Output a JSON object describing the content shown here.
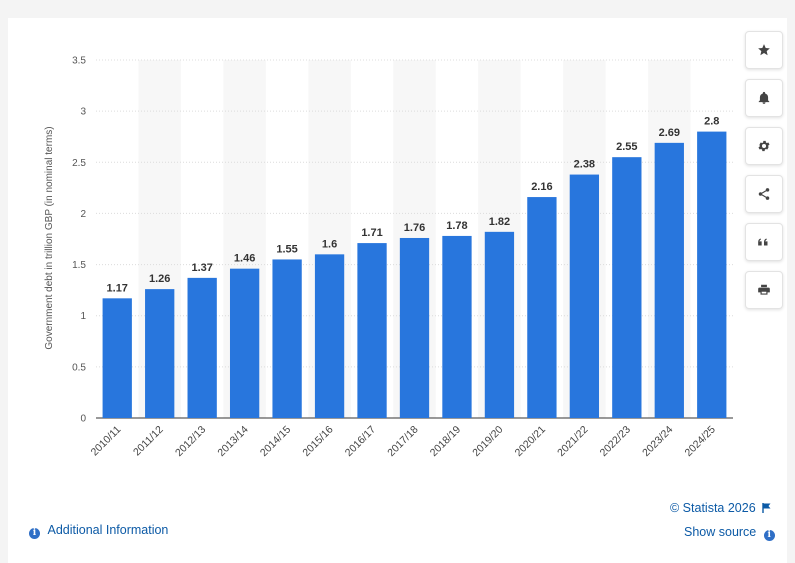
{
  "chart_data": {
    "type": "bar",
    "categories": [
      "2010/11",
      "2011/12",
      "2012/13",
      "2013/14",
      "2014/15",
      "2015/16",
      "2016/17",
      "2017/18",
      "2018/19",
      "2019/20",
      "2020/21",
      "2021/22",
      "2022/23",
      "2023/24",
      "2024/25"
    ],
    "values": [
      1.17,
      1.26,
      1.37,
      1.46,
      1.55,
      1.6,
      1.71,
      1.76,
      1.78,
      1.82,
      2.16,
      2.38,
      2.55,
      2.69,
      2.8
    ],
    "value_labels": [
      "1.17",
      "1.26",
      "1.37",
      "1.46",
      "1.55",
      "1.6",
      "1.71",
      "1.76",
      "1.78",
      "1.82",
      "2.16",
      "2.38",
      "2.55",
      "2.69",
      "2.8"
    ],
    "title": "",
    "xlabel": "",
    "ylabel": "Government debt in trillion GBP (in nominal terms)",
    "ylim": [
      0,
      3.5
    ],
    "yticks": [
      0,
      0.5,
      1,
      1.5,
      2,
      2.5,
      3,
      3.5
    ],
    "ytick_labels": [
      "0",
      "0.5",
      "1",
      "1.5",
      "2",
      "2.5",
      "3",
      "3.5"
    ],
    "grid": true,
    "bar_color": "#2876dd",
    "alternating_band_color": "#f7f7f7"
  },
  "toolbar": {
    "buttons": [
      {
        "name": "favorite-button",
        "icon": "star-icon"
      },
      {
        "name": "notification-button",
        "icon": "bell-icon"
      },
      {
        "name": "settings-button",
        "icon": "gear-icon"
      },
      {
        "name": "share-button",
        "icon": "share-icon"
      },
      {
        "name": "cite-button",
        "icon": "quote-icon"
      },
      {
        "name": "print-button",
        "icon": "printer-icon"
      }
    ]
  },
  "footer": {
    "copyright": "© Statista 2026",
    "additional_info": "Additional Information",
    "show_source": "Show source"
  },
  "colors": {
    "link": "#0c5aa6",
    "icon": "#444444"
  }
}
